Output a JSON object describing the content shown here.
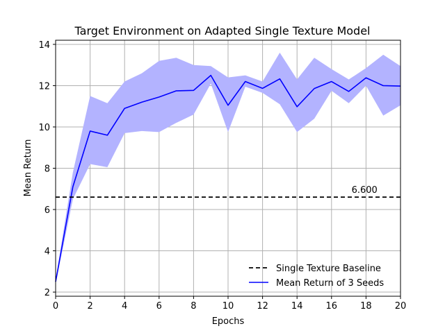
{
  "chart_data": {
    "type": "line",
    "title": "Target Environment on Adapted Single Texture Model",
    "xlabel": "Epochs",
    "ylabel": "Mean Return",
    "xlim": [
      0,
      20
    ],
    "ylim": [
      1.8,
      14.2
    ],
    "xticks": [
      0,
      2,
      4,
      6,
      8,
      10,
      12,
      14,
      16,
      18,
      20
    ],
    "yticks": [
      2,
      4,
      6,
      8,
      10,
      12,
      14
    ],
    "grid": true,
    "legend_position": "lower-right",
    "x": [
      0,
      1,
      2,
      3,
      4,
      5,
      6,
      7,
      8,
      9,
      10,
      11,
      12,
      13,
      14,
      15,
      16,
      17,
      18,
      19,
      20
    ],
    "series": [
      {
        "name": "Mean Return of 3 Seeds",
        "style": "solid",
        "color": "#0000ff",
        "values": [
          2.5,
          7.1,
          9.8,
          9.6,
          10.9,
          11.2,
          11.45,
          11.75,
          11.77,
          12.5,
          11.05,
          12.2,
          11.87,
          12.33,
          10.98,
          11.86,
          12.2,
          11.72,
          12.38,
          12.0,
          11.98
        ],
        "band_lower": [
          2.4,
          6.5,
          8.2,
          8.05,
          9.7,
          9.8,
          9.75,
          10.2,
          10.6,
          12.1,
          9.75,
          11.95,
          11.65,
          11.1,
          9.75,
          10.4,
          11.75,
          11.15,
          12.0,
          10.55,
          11.05
        ],
        "band_upper": [
          2.6,
          7.8,
          11.5,
          11.15,
          12.2,
          12.6,
          13.2,
          13.35,
          13.0,
          12.95,
          12.4,
          12.5,
          12.2,
          13.6,
          12.3,
          13.35,
          12.8,
          12.3,
          12.85,
          13.5,
          12.95
        ],
        "band_color": "#b3b3ff"
      },
      {
        "name": "Single Texture Baseline",
        "style": "dashed",
        "color": "#000000",
        "constant": 6.6
      }
    ],
    "annotations": [
      {
        "text": "6.600",
        "x": 17.0,
        "y": 6.6
      }
    ]
  }
}
